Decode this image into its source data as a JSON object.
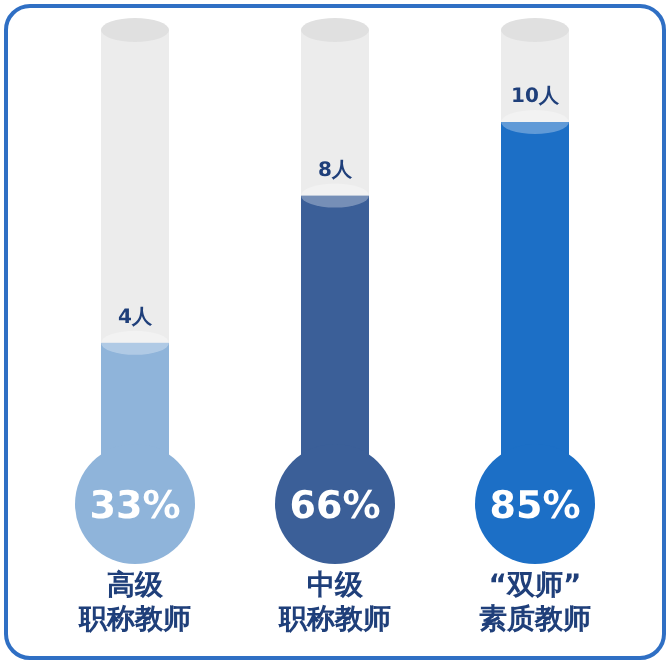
{
  "chart_data": {
    "type": "bar",
    "categories": [
      "高级职称教师",
      "中级职称教师",
      "“双师”素质教师"
    ],
    "values": [
      4,
      8,
      10
    ],
    "value_labels": [
      "4人",
      "8人",
      "10人"
    ],
    "colors": [
      "#8fb4da",
      "#3b5f98",
      "#1c6fc6"
    ],
    "annotations": [
      "33%",
      "66%",
      "85%"
    ]
  }
}
